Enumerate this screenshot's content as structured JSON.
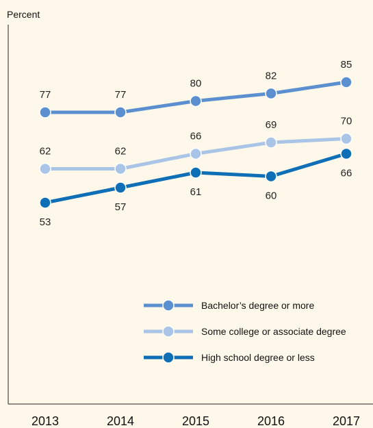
{
  "chart_data": {
    "type": "line",
    "ylabel": "Percent",
    "xlabel": "",
    "categories": [
      "2013",
      "2014",
      "2015",
      "2016",
      "2017"
    ],
    "ylim": [
      20,
      100
    ],
    "grid": false,
    "legend_position": "bottom-right",
    "series": [
      {
        "name": "Bachelor’s degree or more",
        "color": "#5b8fcf",
        "values": [
          77,
          77,
          80,
          82,
          85
        ],
        "label_position": "above"
      },
      {
        "name": "Some college or associate degree",
        "color": "#a9c4e6",
        "values": [
          62,
          62,
          66,
          69,
          70
        ],
        "label_position": "above"
      },
      {
        "name": "High school degree or less",
        "color": "#0f6fb6",
        "values": [
          53,
          57,
          61,
          60,
          66
        ],
        "label_position": "below"
      }
    ]
  }
}
